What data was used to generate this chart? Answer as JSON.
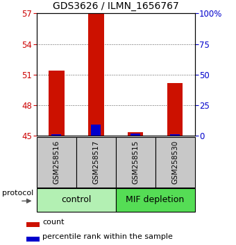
{
  "title": "GDS3626 / ILMN_1656767",
  "samples": [
    "GSM258516",
    "GSM258517",
    "GSM258515",
    "GSM258530"
  ],
  "groups": [
    {
      "label": "control",
      "samples": [
        0,
        1
      ],
      "color": "#b3f0b3"
    },
    {
      "label": "MIF depletion",
      "samples": [
        2,
        3
      ],
      "color": "#55dd55"
    }
  ],
  "red_values": [
    51.4,
    57.0,
    45.35,
    50.2
  ],
  "blue_values_pct": [
    1.5,
    9.5,
    2.0,
    1.5
  ],
  "ylim_left": [
    45,
    57
  ],
  "ylim_right": [
    0,
    100
  ],
  "yticks_left": [
    45,
    48,
    51,
    54,
    57
  ],
  "yticks_right": [
    0,
    25,
    50,
    75,
    100
  ],
  "bar_base": 45,
  "left_tick_color": "#cc0000",
  "right_tick_color": "#0000cc",
  "red_bar_color": "#cc1100",
  "blue_bar_color": "#0000cc",
  "bar_width": 0.4,
  "blue_bar_width": 0.25,
  "grid_yticks": [
    48,
    51,
    54
  ],
  "sample_box_color": "#c8c8c8",
  "legend_items": [
    "count",
    "percentile rank within the sample"
  ],
  "protocol_label": "protocol"
}
